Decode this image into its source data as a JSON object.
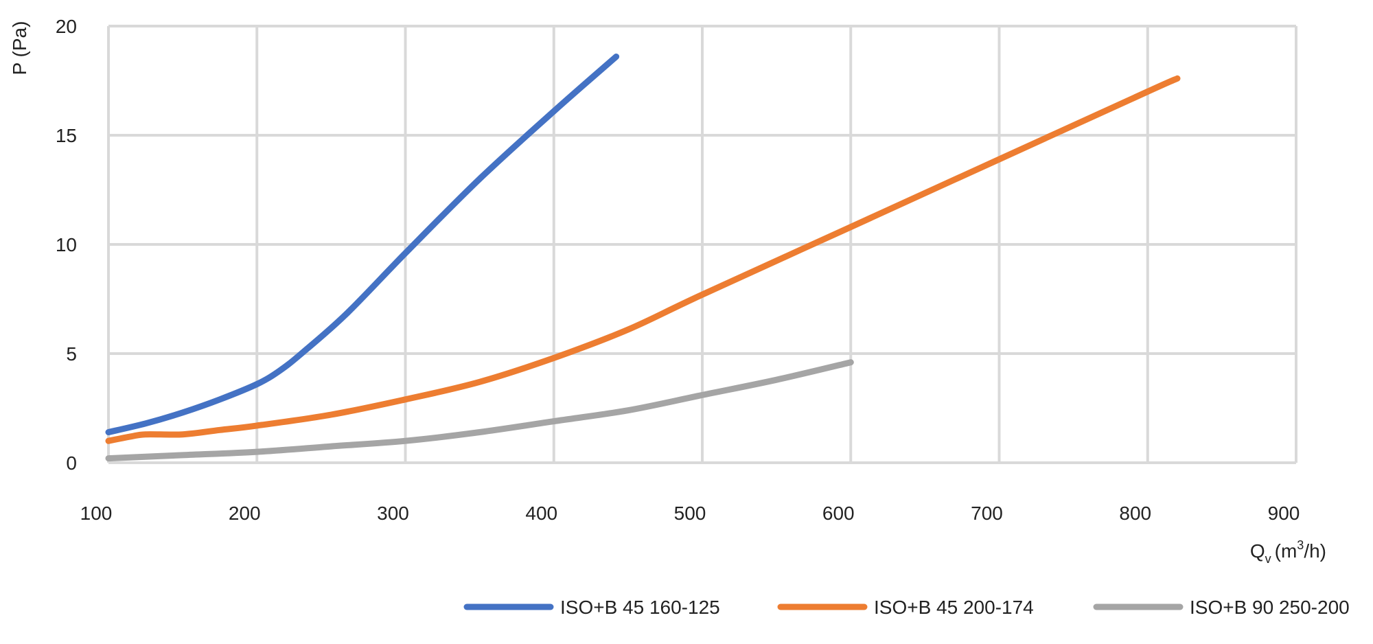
{
  "chart_data": {
    "type": "line",
    "title": "",
    "xlabel": {
      "base": "Q",
      "sub": "v",
      "unit_pre": "(m",
      "sup": "3",
      "unit_post": "/h)"
    },
    "ylabel": "P (Pa)",
    "xlim": [
      100,
      900
    ],
    "ylim": [
      0,
      20
    ],
    "x_ticks": [
      100,
      200,
      300,
      400,
      500,
      600,
      700,
      800,
      900
    ],
    "y_ticks": [
      0,
      5,
      10,
      15,
      20
    ],
    "grid": true,
    "legend_position": "bottom",
    "series": [
      {
        "name": "ISO+B 45 160-125",
        "color": "#4472C4",
        "points": [
          [
            100,
            1.4
          ],
          [
            125,
            1.8
          ],
          [
            150,
            2.3
          ],
          [
            175,
            2.9
          ],
          [
            200,
            3.6
          ],
          [
            215,
            4.2
          ],
          [
            230,
            5.0
          ],
          [
            260,
            6.8
          ],
          [
            300,
            9.6
          ],
          [
            350,
            13.0
          ],
          [
            400,
            16.1
          ],
          [
            442,
            18.6
          ]
        ]
      },
      {
        "name": "ISO+B 45 200-174",
        "color": "#ED7D31",
        "points": [
          [
            100,
            1.0
          ],
          [
            115,
            1.2
          ],
          [
            125,
            1.3
          ],
          [
            150,
            1.3
          ],
          [
            175,
            1.5
          ],
          [
            200,
            1.7
          ],
          [
            250,
            2.2
          ],
          [
            300,
            2.9
          ],
          [
            350,
            3.7
          ],
          [
            400,
            4.8
          ],
          [
            450,
            6.1
          ],
          [
            500,
            7.7
          ],
          [
            600,
            10.8
          ],
          [
            700,
            13.9
          ],
          [
            800,
            17.0
          ],
          [
            820,
            17.6
          ]
        ]
      },
      {
        "name": "ISO+B 90 250-200",
        "color": "#A5A5A5",
        "points": [
          [
            100,
            0.2
          ],
          [
            150,
            0.35
          ],
          [
            200,
            0.5
          ],
          [
            250,
            0.75
          ],
          [
            300,
            1.0
          ],
          [
            350,
            1.4
          ],
          [
            400,
            1.9
          ],
          [
            450,
            2.4
          ],
          [
            500,
            3.1
          ],
          [
            550,
            3.8
          ],
          [
            600,
            4.6
          ]
        ]
      }
    ]
  }
}
